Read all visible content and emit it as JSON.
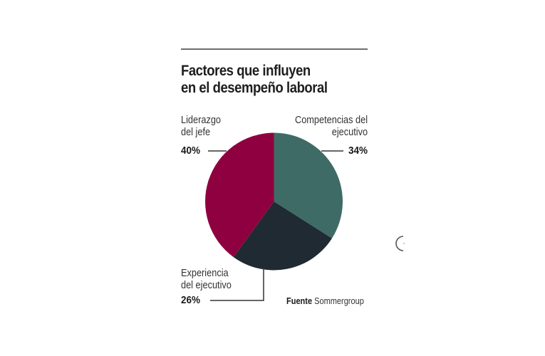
{
  "chart_data": {
    "type": "pie",
    "title": "Factores que influyen en el desempeño laboral",
    "categories": [
      "Competencias del ejecutivo",
      "Experiencia del ejecutivo",
      "Liderazgo del jefe"
    ],
    "values": [
      34,
      26,
      40
    ],
    "unit": "%",
    "colors": [
      "#3f6b66",
      "#1f2a33",
      "#8e0040"
    ],
    "start_angle": "12 o'clock, clockwise",
    "legend": "direct labels with leader lines",
    "source": "Fuente Sommergroup"
  },
  "header": {
    "title_line1": "Factores que influyen",
    "title_line2": "en el desempeño laboral"
  },
  "labels": {
    "liderazgo": {
      "line1": "Liderazgo",
      "line2": "del jefe",
      "pct": "40%"
    },
    "competencias": {
      "line1": "Competencias del",
      "line2": "ejecutivo",
      "pct": "34%"
    },
    "experiencia": {
      "line1": "Experiencia",
      "line2": "del ejecutivo",
      "pct": "26%"
    }
  },
  "footer": {
    "source_label": "Fuente",
    "source_name": "Sommergroup"
  },
  "nav": {
    "icon": "partial-circle-arrow-icon"
  }
}
